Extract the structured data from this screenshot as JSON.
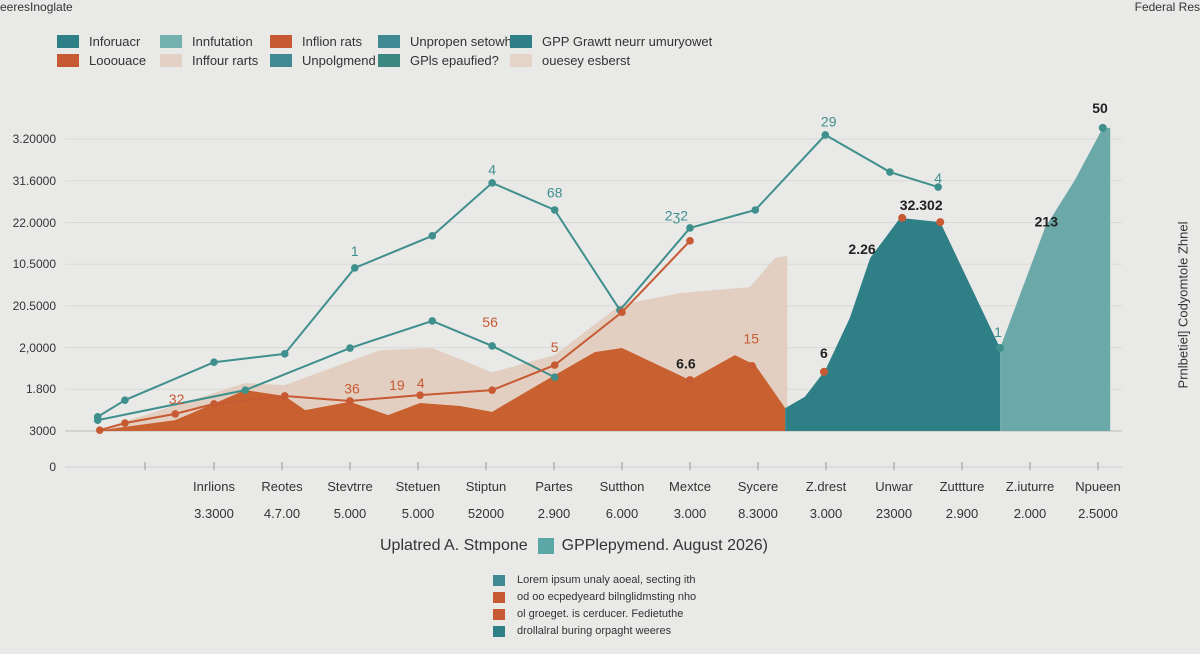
{
  "header": {
    "top_left": "eeresInoglate",
    "top_right": "Federal Res"
  },
  "legend_top": [
    {
      "label": "Inforuacr",
      "color": "#2f7f86"
    },
    {
      "label": "Innfutation",
      "color": "#74b2b0"
    },
    {
      "label": "Inflion rats",
      "color": "#c75a33"
    },
    {
      "label": "Unpropen setowh",
      "color": "#3f8a92"
    },
    {
      "label": "GPP Grawtt neurr umuryowet",
      "color": "#2f7f86"
    },
    {
      "label": "Looouace",
      "color": "#c75a33"
    },
    {
      "label": "Inffour rarts",
      "color": "#e2d1c4"
    },
    {
      "label": "Unpolgmend",
      "color": "#3f8a92"
    },
    {
      "label": "GPls epaufied?",
      "color": "#3a8880"
    },
    {
      "label": "ouesey esberst",
      "color": "#e4d3c8"
    }
  ],
  "right_axis_label": "Prnlbetiel] Codyomtole Zhnel",
  "chart_data": {
    "type": "area",
    "title": "",
    "y_tick_labels": [
      "3000",
      "1.800",
      "2,0000",
      "20.5000",
      "10.5000",
      "22.0000",
      "31.6000",
      "3.20000"
    ],
    "y_zero_label": "0",
    "categories": [
      "Inrlions",
      "Reotes",
      "Stevtrre",
      "Stetuen",
      "Stiptun",
      "Partes",
      "Sutthon",
      "Mextce",
      "Sycere",
      "Z.drest",
      "Unwar",
      "Zuttture",
      "Z.iuturre",
      "Npueen"
    ],
    "category_values": [
      "3.3000",
      "4.7.00",
      "5.000",
      "5.000",
      "52000",
      "2.900",
      "6.000",
      "3.000",
      "8.3000",
      "3.000",
      "23000",
      "2.900",
      "2.000",
      "2.5000"
    ],
    "grid": true,
    "series": [
      {
        "kind": "area",
        "color": "#e2cfc1",
        "points": [
          [
            -1.75,
            0
          ],
          [
            0.46,
            1.15
          ],
          [
            1.04,
            1.1
          ],
          [
            2.44,
            1.94
          ],
          [
            3.21,
            1.99
          ],
          [
            4.09,
            1.41
          ],
          [
            5.01,
            1.82
          ],
          [
            5.97,
            3.02
          ],
          [
            6.85,
            3.31
          ],
          [
            7.88,
            3.45
          ],
          [
            8.25,
            4.15
          ],
          [
            8.43,
            4.2
          ],
          [
            8.43,
            0
          ]
        ]
      },
      {
        "kind": "area",
        "color": "#c8602f",
        "points": [
          [
            -1.75,
            0
          ],
          [
            -0.57,
            0.26
          ],
          [
            0.46,
            0.98
          ],
          [
            1.04,
            0.84
          ],
          [
            1.34,
            0.5
          ],
          [
            2.0,
            0.7
          ],
          [
            2.56,
            0.38
          ],
          [
            3.03,
            0.67
          ],
          [
            3.62,
            0.6
          ],
          [
            4.09,
            0.46
          ],
          [
            5.01,
            1.34
          ],
          [
            5.6,
            1.89
          ],
          [
            6.0,
            1.99
          ],
          [
            7.0,
            1.22
          ],
          [
            7.66,
            1.82
          ],
          [
            7.96,
            1.58
          ],
          [
            8.4,
            0.55
          ],
          [
            8.4,
            0
          ]
        ]
      },
      {
        "kind": "area",
        "color": "#2f7f86",
        "points": [
          [
            8.4,
            0
          ],
          [
            8.4,
            0.55
          ],
          [
            8.69,
            0.82
          ],
          [
            8.99,
            1.46
          ],
          [
            9.35,
            2.71
          ],
          [
            9.65,
            4.15
          ],
          [
            10.09,
            5.11
          ],
          [
            10.68,
            5.01
          ],
          [
            11.56,
            1.99
          ],
          [
            11.56,
            0
          ]
        ]
      },
      {
        "kind": "area",
        "color": "#6ba9a9",
        "points": [
          [
            11.56,
            0
          ],
          [
            11.56,
            1.99
          ],
          [
            12.22,
            4.87
          ],
          [
            12.66,
            6.02
          ],
          [
            13.07,
            7.27
          ],
          [
            13.18,
            7.27
          ],
          [
            13.18,
            0
          ]
        ]
      },
      {
        "kind": "line",
        "color": "#3f8f8c",
        "points": [
          [
            -1.71,
            0.34
          ],
          [
            -1.31,
            0.74
          ],
          [
            0,
            1.65
          ],
          [
            1.04,
            1.85
          ],
          [
            2.07,
            3.91
          ],
          [
            3.21,
            4.68
          ],
          [
            4.09,
            5.95
          ],
          [
            5.01,
            5.3
          ],
          [
            5.97,
            2.9
          ],
          [
            7.0,
            4.87
          ],
          [
            7.96,
            5.3
          ],
          [
            8.99,
            7.1
          ],
          [
            9.94,
            6.21
          ],
          [
            10.65,
            5.85
          ]
        ],
        "markers": true
      },
      {
        "kind": "line",
        "color": "#3f8f8c",
        "points": [
          [
            -1.71,
            0.26
          ],
          [
            0.46,
            0.98
          ],
          [
            2.0,
            1.99
          ],
          [
            3.21,
            2.64
          ],
          [
            4.09,
            2.04
          ],
          [
            5.01,
            1.29
          ]
        ],
        "markers": true
      },
      {
        "kind": "line",
        "color": "#c75a33",
        "points": [
          [
            -1.68,
            0.02
          ],
          [
            -1.31,
            0.19
          ],
          [
            -0.57,
            0.41
          ],
          [
            0,
            0.65
          ],
          [
            1.04,
            0.84
          ],
          [
            2.0,
            0.72
          ],
          [
            3.03,
            0.86
          ],
          [
            4.09,
            0.98
          ],
          [
            5.01,
            1.58
          ],
          [
            6.0,
            2.85
          ],
          [
            7.0,
            4.56
          ]
        ],
        "markers": true
      }
    ],
    "dots": [
      {
        "x": 8.97,
        "y": 1.42,
        "color": "#c75a33"
      },
      {
        "x": 10.12,
        "y": 5.11,
        "color": "#c75a33"
      },
      {
        "x": 10.68,
        "y": 5.01,
        "color": "#c75a33"
      },
      {
        "x": 7.0,
        "y": 1.22,
        "color": "#c75a33"
      },
      {
        "x": 7.91,
        "y": 1.56,
        "color": "#c75a33"
      },
      {
        "x": 13.07,
        "y": 7.27,
        "color": "#3f8f8c"
      },
      {
        "x": 11.56,
        "y": 1.99,
        "color": "#3f8f8c"
      }
    ],
    "annotations": [
      {
        "text": "1",
        "x": 2.07,
        "y": 4.2,
        "color": "#3f8f8c"
      },
      {
        "text": "4",
        "x": 4.09,
        "y": 6.15,
        "color": "#3f8f8c"
      },
      {
        "text": "68",
        "x": 5.01,
        "y": 5.6,
        "color": "#3f8f8c"
      },
      {
        "text": "29",
        "x": 9.04,
        "y": 7.3,
        "color": "#3f8f8c"
      },
      {
        "text": "4",
        "x": 10.65,
        "y": 5.95,
        "color": "#3f8f8c"
      },
      {
        "text": "2ʒ2",
        "x": 6.8,
        "y": 5.05,
        "color": "#3f8f8c"
      },
      {
        "text": "32",
        "x": -0.55,
        "y": 0.65,
        "color": "#c75a33"
      },
      {
        "text": "36",
        "x": 2.03,
        "y": 0.9,
        "color": "#c75a33"
      },
      {
        "text": "19",
        "x": 2.69,
        "y": 0.98,
        "color": "#c75a33"
      },
      {
        "text": "4",
        "x": 3.04,
        "y": 1.03,
        "color": "#c75a33"
      },
      {
        "text": "56",
        "x": 4.06,
        "y": 2.5,
        "color": "#c75a33"
      },
      {
        "text": "5",
        "x": 5.01,
        "y": 1.9,
        "color": "#c75a33"
      },
      {
        "text": "15",
        "x": 7.9,
        "y": 2.1,
        "color": "#c75a33"
      },
      {
        "text": "6.6",
        "x": 6.94,
        "y": 1.5,
        "color": "#222"
      },
      {
        "text": "6",
        "x": 8.97,
        "y": 1.75,
        "color": "#222"
      },
      {
        "text": "2.26",
        "x": 9.53,
        "y": 4.25,
        "color": "#222"
      },
      {
        "text": "32.302",
        "x": 10.4,
        "y": 5.3,
        "color": "#222"
      },
      {
        "text": "1",
        "x": 11.53,
        "y": 2.25,
        "color": "#3f8f8c"
      },
      {
        "text": "213",
        "x": 12.24,
        "y": 4.9,
        "color": "#222"
      },
      {
        "text": "50",
        "x": 13.03,
        "y": 7.62,
        "color": "#222"
      }
    ]
  },
  "legend_mid": {
    "label_left": "Uplatred A. Stmpone",
    "label_right": "GPPlepymend. August 2026)",
    "color": "#5aa7a6"
  },
  "legend_bottom": [
    {
      "label": "Lorem ipsum unaly aoeal, secting ith",
      "color": "#3f8a92"
    },
    {
      "label": "od oo ecpedyeard bilnglidmsting nho",
      "color": "#c75a33"
    },
    {
      "label": "ol groeget. is cerducer. Fedietuthe",
      "color": "#c75a33"
    },
    {
      "label": "drollalral buring orpaght weeres",
      "color": "#2f7f86"
    }
  ]
}
